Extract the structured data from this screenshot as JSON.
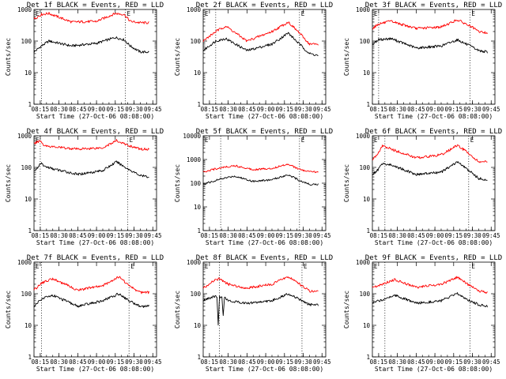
{
  "chart_data": [
    {
      "type": "line",
      "title": "Det 1f BLACK = Events, RED = LLD",
      "xlabel": "Start Time (27-Oct-06 08:08:00)",
      "ylabel": "Counts/sec",
      "y_scale": "log",
      "ylim": [
        1,
        1000
      ],
      "y_tick_labels": [
        "1",
        "10",
        "100",
        "1000"
      ],
      "x_tick_labels": [
        "08:15",
        "08:30",
        "08:45",
        "09:00",
        "09:15",
        "09:30",
        "09:45"
      ],
      "corner_labels": [
        "E",
        "E"
      ],
      "markers": [
        "08:16",
        "09:23"
      ],
      "series": [
        {
          "color": "#000000",
          "x": [
            "08:10",
            "08:16",
            "08:22",
            "08:40",
            "09:00",
            "09:15",
            "09:22",
            "09:27",
            "09:35",
            "09:42"
          ],
          "y": [
            45,
            70,
            100,
            70,
            85,
            130,
            110,
            70,
            45,
            45
          ]
        },
        {
          "color": "#ff0000",
          "x": [
            "08:10",
            "08:16",
            "08:22",
            "08:40",
            "09:00",
            "09:15",
            "09:22",
            "09:27",
            "09:35",
            "09:42"
          ],
          "y": [
            500,
            700,
            750,
            400,
            420,
            750,
            700,
            420,
            380,
            380
          ]
        }
      ]
    },
    {
      "type": "line",
      "title": "Det 2f BLACK = Events, RED = LLD",
      "xlabel": "Start Time (27-Oct-06 08:08:00)",
      "ylabel": "Counts/sec",
      "y_scale": "log",
      "ylim": [
        1,
        1000
      ],
      "y_tick_labels": [
        "1",
        "10",
        "100",
        "1000"
      ],
      "x_tick_labels": [
        "08:15",
        "08:30",
        "08:45",
        "09:00",
        "09:15",
        "09:30",
        "09:45"
      ],
      "corner_labels": [
        "E",
        "E"
      ],
      "markers": [
        "08:20",
        "09:27"
      ],
      "series": [
        {
          "color": "#000000",
          "x": [
            "08:10",
            "08:20",
            "08:28",
            "08:45",
            "09:05",
            "09:18",
            "09:27",
            "09:35",
            "09:42"
          ],
          "y": [
            50,
            100,
            120,
            50,
            80,
            180,
            80,
            40,
            35
          ]
        },
        {
          "color": "#ff0000",
          "x": [
            "08:10",
            "08:20",
            "08:28",
            "08:45",
            "09:05",
            "09:18",
            "09:27",
            "09:35",
            "09:42"
          ],
          "y": [
            100,
            200,
            300,
            100,
            200,
            400,
            180,
            80,
            80
          ]
        }
      ]
    },
    {
      "type": "line",
      "title": "Det 3f BLACK = Events, RED = LLD",
      "xlabel": "Start Time (27-Oct-06 08:08:00)",
      "ylabel": "Counts/sec",
      "y_scale": "log",
      "ylim": [
        1,
        1000
      ],
      "y_tick_labels": [
        "1",
        "10",
        "100",
        "1000"
      ],
      "x_tick_labels": [
        "08:15",
        "08:30",
        "08:45",
        "09:00",
        "09:15",
        "09:30",
        "09:45"
      ],
      "corner_labels": [
        "E",
        "E"
      ],
      "markers": [
        "08:15",
        "09:28"
      ],
      "series": [
        {
          "color": "#000000",
          "x": [
            "08:10",
            "08:15",
            "08:25",
            "08:45",
            "09:05",
            "09:18",
            "09:28",
            "09:35",
            "09:42"
          ],
          "y": [
            80,
            110,
            120,
            60,
            70,
            110,
            70,
            50,
            45
          ]
        },
        {
          "color": "#ff0000",
          "x": [
            "08:10",
            "08:15",
            "08:25",
            "08:45",
            "09:05",
            "09:18",
            "09:28",
            "09:35",
            "09:42"
          ],
          "y": [
            250,
            350,
            420,
            250,
            280,
            470,
            300,
            200,
            180
          ]
        }
      ]
    },
    {
      "type": "line",
      "title": "Det 4f BLACK = Events, RED = LLD",
      "xlabel": "Start Time (27-Oct-06 08:08:00)",
      "ylabel": "Counts/sec",
      "y_scale": "log",
      "ylim": [
        1,
        1000
      ],
      "y_tick_labels": [
        "1",
        "10",
        "100",
        "1000"
      ],
      "x_tick_labels": [
        "08:15",
        "08:30",
        "08:45",
        "09:00",
        "09:15",
        "09:30",
        "09:45"
      ],
      "corner_labels": [
        "E",
        "E"
      ],
      "markers": [
        "08:15",
        "09:25"
      ],
      "series": [
        {
          "color": "#000000",
          "x": [
            "08:10",
            "08:13",
            "08:15",
            "08:18",
            "08:25",
            "08:45",
            "09:05",
            "09:16",
            "09:25",
            "09:35",
            "09:42"
          ],
          "y": [
            80,
            90,
            140,
            110,
            90,
            60,
            80,
            150,
            90,
            55,
            50
          ]
        },
        {
          "color": "#ff0000",
          "x": [
            "08:10",
            "08:13",
            "08:15",
            "08:18",
            "08:25",
            "08:45",
            "09:05",
            "09:16",
            "09:25",
            "09:35",
            "09:42"
          ],
          "y": [
            550,
            650,
            700,
            500,
            450,
            380,
            420,
            700,
            500,
            380,
            380
          ]
        }
      ]
    },
    {
      "type": "line",
      "title": "Det 5f BLACK = Events, RED = LLD",
      "xlabel": "Start Time (27-Oct-06 08:08:00)",
      "ylabel": "Counts/sec",
      "y_scale": "log",
      "ylim": [
        1,
        10000
      ],
      "y_tick_labels": [
        "1",
        "10",
        "100",
        "1000",
        "10000"
      ],
      "x_tick_labels": [
        "08:15",
        "08:30",
        "08:45",
        "09:00",
        "09:15",
        "09:30",
        "09:45"
      ],
      "corner_labels": [
        "E",
        "E"
      ],
      "markers": [
        "08:24",
        "09:27"
      ],
      "series": [
        {
          "color": "#000000",
          "x": [
            "08:10",
            "08:24",
            "08:35",
            "08:50",
            "09:05",
            "09:18",
            "09:27",
            "09:35",
            "09:42"
          ],
          "y": [
            90,
            150,
            200,
            120,
            140,
            230,
            130,
            90,
            90
          ]
        },
        {
          "color": "#ff0000",
          "x": [
            "08:10",
            "08:24",
            "08:35",
            "08:50",
            "09:05",
            "09:18",
            "09:27",
            "09:35",
            "09:42"
          ],
          "y": [
            300,
            450,
            550,
            380,
            420,
            650,
            380,
            300,
            300
          ]
        }
      ]
    },
    {
      "type": "line",
      "title": "Det 6f BLACK = Events, RED = LLD",
      "xlabel": "Start Time (27-Oct-06 08:08:00)",
      "ylabel": "Counts/sec",
      "y_scale": "log",
      "ylim": [
        1,
        1000
      ],
      "y_tick_labels": [
        "1",
        "10",
        "100",
        "1000"
      ],
      "x_tick_labels": [
        "08:15",
        "08:30",
        "08:45",
        "09:00",
        "09:15",
        "09:30",
        "09:45"
      ],
      "corner_labels": [
        "E",
        "E"
      ],
      "markers": [
        "08:20",
        "09:27"
      ],
      "series": [
        {
          "color": "#000000",
          "x": [
            "08:10",
            "08:14",
            "08:18",
            "08:25",
            "08:45",
            "09:05",
            "09:18",
            "09:27",
            "09:35",
            "09:42"
          ],
          "y": [
            60,
            80,
            130,
            120,
            60,
            70,
            150,
            80,
            45,
            40
          ]
        },
        {
          "color": "#ff0000",
          "x": [
            "08:10",
            "08:14",
            "08:18",
            "08:25",
            "08:45",
            "09:05",
            "09:18",
            "09:27",
            "09:35",
            "09:42"
          ],
          "y": [
            180,
            250,
            480,
            380,
            200,
            250,
            500,
            280,
            150,
            150
          ]
        }
      ]
    },
    {
      "type": "line",
      "title": "Det 7f BLACK = Events, RED = LLD",
      "xlabel": "Start Time (27-Oct-06 08:08:00)",
      "ylabel": "Counts/sec",
      "y_scale": "log",
      "ylim": [
        1,
        1000
      ],
      "y_tick_labels": [
        "1",
        "10",
        "100",
        "1000"
      ],
      "x_tick_labels": [
        "08:15",
        "08:30",
        "08:45",
        "09:00",
        "09:15",
        "09:30",
        "09:45"
      ],
      "corner_labels": [
        "E",
        "E"
      ],
      "markers": [
        "08:16",
        "09:26"
      ],
      "series": [
        {
          "color": "#000000",
          "x": [
            "08:10",
            "08:16",
            "08:25",
            "08:45",
            "09:05",
            "09:18",
            "09:26",
            "09:35",
            "09:42"
          ],
          "y": [
            40,
            70,
            90,
            40,
            60,
            100,
            60,
            40,
            40
          ]
        },
        {
          "color": "#ff0000",
          "x": [
            "08:10",
            "08:16",
            "08:25",
            "08:45",
            "09:05",
            "09:18",
            "09:26",
            "09:35",
            "09:42"
          ],
          "y": [
            130,
            220,
            300,
            130,
            180,
            350,
            180,
            110,
            110
          ]
        }
      ]
    },
    {
      "type": "line",
      "title": "Det 8f BLACK = Events, RED = LLD",
      "xlabel": "Start Time (27-Oct-06 08:08:00)",
      "ylabel": "Counts/sec",
      "y_scale": "log",
      "ylim": [
        1,
        1000
      ],
      "y_tick_labels": [
        "1",
        "10",
        "100",
        "1000"
      ],
      "x_tick_labels": [
        "08:15",
        "08:30",
        "08:45",
        "09:00",
        "09:15",
        "09:30",
        "09:45"
      ],
      "corner_labels": [
        "E",
        "E"
      ],
      "markers": [
        "08:23",
        "09:29"
      ],
      "series": [
        {
          "color": "#000000",
          "x": [
            "08:10",
            "08:18",
            "08:21",
            "08:22",
            "08:23",
            "08:25",
            "08:26",
            "08:27",
            "08:30",
            "08:45",
            "09:05",
            "09:18",
            "09:29",
            "09:35",
            "09:42"
          ],
          "y": [
            60,
            80,
            80,
            10,
            80,
            80,
            20,
            80,
            60,
            50,
            60,
            100,
            60,
            45,
            45
          ]
        },
        {
          "color": "#ff0000",
          "x": [
            "08:10",
            "08:18",
            "08:23",
            "08:30",
            "08:45",
            "09:05",
            "09:18",
            "09:29",
            "09:35",
            "09:42"
          ],
          "y": [
            150,
            250,
            300,
            200,
            150,
            200,
            350,
            180,
            120,
            120
          ]
        }
      ]
    },
    {
      "type": "line",
      "title": "Det 9f BLACK = Events, RED = LLD",
      "xlabel": "Start Time (27-Oct-06 08:08:00)",
      "ylabel": "Counts/sec",
      "y_scale": "log",
      "ylim": [
        1,
        1000
      ],
      "y_tick_labels": [
        "1",
        "10",
        "100",
        "1000"
      ],
      "x_tick_labels": [
        "08:15",
        "08:30",
        "08:45",
        "09:00",
        "09:15",
        "09:30",
        "09:45"
      ],
      "corner_labels": [
        "E",
        "E"
      ],
      "markers": [
        "08:20",
        "09:28"
      ],
      "series": [
        {
          "color": "#000000",
          "x": [
            "08:10",
            "08:20",
            "08:28",
            "08:45",
            "09:05",
            "09:18",
            "09:28",
            "09:35",
            "09:42"
          ],
          "y": [
            50,
            70,
            90,
            50,
            60,
            100,
            60,
            45,
            40
          ]
        },
        {
          "color": "#ff0000",
          "x": [
            "08:10",
            "08:20",
            "08:28",
            "08:45",
            "09:05",
            "09:18",
            "09:28",
            "09:35",
            "09:42"
          ],
          "y": [
            150,
            220,
            280,
            160,
            200,
            330,
            180,
            120,
            110
          ]
        }
      ]
    }
  ]
}
